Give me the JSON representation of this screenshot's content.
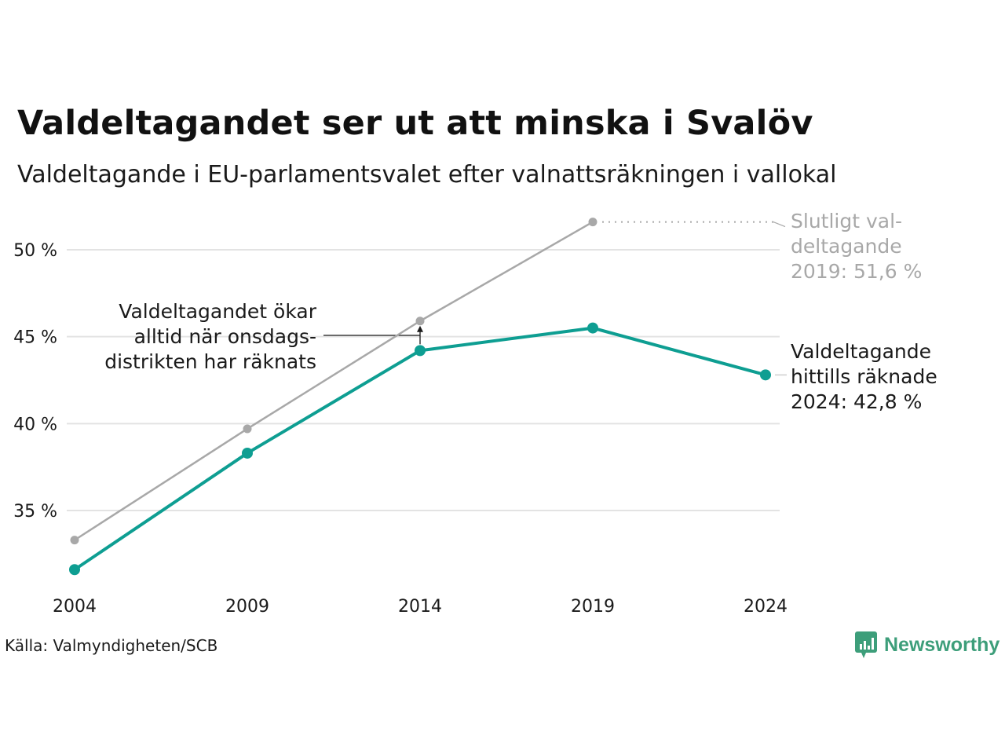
{
  "title": "Valdeltagandet ser ut att minska i Svalöv",
  "subtitle": "Valdeltagande i EU-parlamentsvalet efter valnattsräkningen i vallokal",
  "source": "Källa: Valmyndigheten/SCB",
  "brand": "Newsworthy",
  "colors": {
    "final_series": "#a8a8a8",
    "election_night_series": "#0e9e92",
    "grid": "#e3e3e3",
    "brand": "#3d9e7a"
  },
  "chart_data": {
    "type": "line",
    "x": [
      2004,
      2009,
      2014,
      2019,
      2024
    ],
    "x_tick_labels": [
      "2004",
      "2009",
      "2014",
      "2019",
      "2024"
    ],
    "y_tick_values": [
      35,
      40,
      45,
      50
    ],
    "y_tick_labels": [
      "35 %",
      "40 %",
      "45 %",
      "50 %"
    ],
    "ylim": [
      30.5,
      53.2
    ],
    "grid": true,
    "series": [
      {
        "values": [
          33.3,
          39.7,
          45.9,
          51.6,
          null
        ]
      },
      {
        "values": [
          31.6,
          38.3,
          44.2,
          45.5,
          42.8
        ]
      }
    ],
    "annotations": {
      "onsdag": [
        "Valdeltagandet ökar",
        "alltid när onsdags-",
        "distrikten har räknats"
      ],
      "final_2019": [
        "Slutligt val-",
        "deltagande",
        "2019: 51,6 %"
      ],
      "current_2024": [
        "Valdeltagande",
        "hittills räknade",
        "2024: 42,8 %"
      ]
    }
  }
}
